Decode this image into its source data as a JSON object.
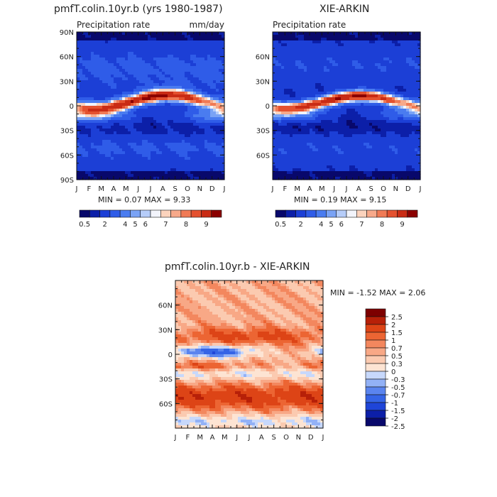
{
  "panel1": {
    "title": "pmfT.colin.10yr.b (yrs 1980-1987)",
    "subtitle_left": "Precipitation rate",
    "subtitle_right": "mm/day",
    "stats": "MIN =    0.07 MAX =    9.33",
    "lat_labels": [
      "90N",
      "60N",
      "30N",
      "0",
      "30S",
      "60S",
      "90S"
    ],
    "month_labels": [
      "J",
      "F",
      "M",
      "A",
      "M",
      "J",
      "J",
      "A",
      "S",
      "O",
      "N",
      "D",
      "J"
    ],
    "colorbar_labels": [
      "0.5",
      "2",
      "4",
      "5",
      "6",
      "7",
      "8",
      "9"
    ]
  },
  "panel2": {
    "title": "XIE-ARKIN",
    "subtitle_left": "Precipitation rate",
    "stats": "MIN =    0.19 MAX =    9.15",
    "lat_labels": [
      "60N",
      "30N",
      "0",
      "30S",
      "60S"
    ],
    "month_labels": [
      "J",
      "F",
      "M",
      "A",
      "M",
      "J",
      "J",
      "A",
      "S",
      "O",
      "N",
      "D",
      "J"
    ],
    "colorbar_labels": [
      "0.5",
      "2",
      "4",
      "5",
      "6",
      "7",
      "8",
      "9"
    ]
  },
  "panel3": {
    "title": "pmfT.colin.10yr.b - XIE-ARKIN",
    "stats": "MIN =  -1.52 MAX =    2.06",
    "lat_labels": [
      "60N",
      "30N",
      "0",
      "30S",
      "60S"
    ],
    "month_labels": [
      "J",
      "F",
      "M",
      "A",
      "M",
      "J",
      "J",
      "A",
      "S",
      "O",
      "N",
      "D",
      "J"
    ],
    "colorbar_labels": [
      "2.5",
      "2",
      "1.5",
      "1",
      "0.7",
      "0.5",
      "0.3",
      "0",
      "-0.3",
      "-0.5",
      "-0.7",
      "-1",
      "-1.5",
      "-2",
      "-2.5"
    ]
  },
  "colors": {
    "seq_precip": [
      "#08086b",
      "#0c1fa8",
      "#1c3fd6",
      "#2f5ce8",
      "#4a7cf0",
      "#7aa3f5",
      "#b6cdf9",
      "#f2f4fb",
      "#fbd3bd",
      "#f7a98a",
      "#f07a55",
      "#e4512f",
      "#c92b14",
      "#8b0000"
    ],
    "div_diff": [
      "#08086b",
      "#0c1fa8",
      "#1f45d8",
      "#3564e6",
      "#5a84ef",
      "#92b1f6",
      "#c7d8fb",
      "#fde4d3",
      "#fbcab0",
      "#f8a886",
      "#f3875e",
      "#ec6533",
      "#dd4416",
      "#b72008",
      "#7d0000"
    ]
  },
  "chart_data": [
    {
      "type": "heatmap",
      "title": "pmfT.colin.10yr.b (yrs 1980-1987)",
      "subtitle": "Precipitation rate",
      "units": "mm/day",
      "x": [
        "J",
        "F",
        "M",
        "A",
        "M",
        "J",
        "J",
        "A",
        "S",
        "O",
        "N",
        "D",
        "J"
      ],
      "y": [
        -90,
        -60,
        -30,
        0,
        30,
        60,
        90
      ],
      "min": 0.07,
      "max": 9.33,
      "levels": [
        0.5,
        1,
        2,
        3,
        4,
        4.5,
        5,
        5.5,
        6,
        6.5,
        7,
        8,
        9
      ],
      "description": "zonal-mean precipitation, latitude vs month; ITCZ maximum near 5-10N in Jul-Sep"
    },
    {
      "type": "heatmap",
      "title": "XIE-ARKIN",
      "subtitle": "Precipitation rate",
      "x": [
        "J",
        "F",
        "M",
        "A",
        "M",
        "J",
        "J",
        "A",
        "S",
        "O",
        "N",
        "D",
        "J"
      ],
      "y": [
        -60,
        -30,
        0,
        30,
        60
      ],
      "min": 0.19,
      "max": 9.15,
      "levels": [
        0.5,
        1,
        2,
        3,
        4,
        4.5,
        5,
        5.5,
        6,
        6.5,
        7,
        8,
        9
      ]
    },
    {
      "type": "heatmap",
      "title": "pmfT.colin.10yr.b - XIE-ARKIN",
      "x": [
        "J",
        "F",
        "M",
        "A",
        "M",
        "J",
        "J",
        "A",
        "S",
        "O",
        "N",
        "D",
        "J"
      ],
      "y": [
        -60,
        -30,
        0,
        30,
        60
      ],
      "min": -1.52,
      "max": 2.06,
      "levels": [
        -2.5,
        -2,
        -1.5,
        -1,
        -0.7,
        -0.5,
        -0.3,
        0,
        0.3,
        0.5,
        0.7,
        1,
        1.5,
        2,
        2.5
      ]
    }
  ]
}
